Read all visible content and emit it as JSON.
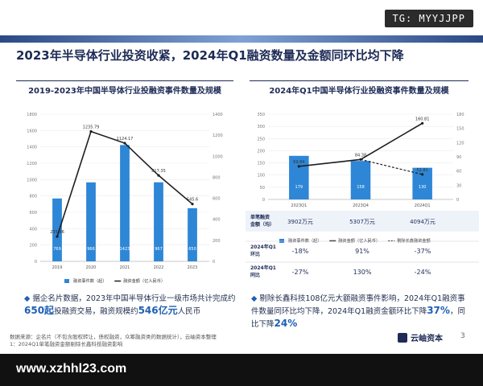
{
  "overlay": {
    "tg_badge": "TG: MYYJJPP",
    "website": "www.xzhhl23.com"
  },
  "headline": "2023年半导体行业投资收紧，2024年Q1融资数量及金额同环比均下降",
  "chart_data": [
    {
      "type": "bar",
      "title": "2019-2023年中国半导体行业投融资事件数量及规模",
      "categories": [
        "2019",
        "2020",
        "2021",
        "2022",
        "2023"
      ],
      "series": [
        {
          "name": "融资事件数（起）",
          "kind": "bar",
          "axis": "left",
          "values": [
            769,
            966,
            1423,
            967,
            650
          ]
        },
        {
          "name": "融资金额（亿人民币）",
          "kind": "line",
          "axis": "right",
          "values": [
            235.96,
            1235.79,
            1124.17,
            817.35,
            545.6
          ]
        }
      ],
      "y_left": {
        "ticks": [
          0,
          200,
          400,
          600,
          800,
          1000,
          1200,
          1400,
          1600,
          1800
        ]
      },
      "y_right": {
        "ticks": [
          0,
          200,
          400,
          600,
          800,
          1000,
          1200,
          1400
        ]
      },
      "legend": "bottom",
      "colors": {
        "bar": "#2e86d6",
        "line": "#1e1e1e"
      }
    },
    {
      "type": "bar",
      "title": "2024年Q1中国半导体行业投融资事件数量及规模",
      "categories": [
        "2023Q1",
        "2023Q4",
        "2024Q1"
      ],
      "series": [
        {
          "name": "融资事件数（起）",
          "kind": "bar",
          "axis": "left",
          "values": [
            179,
            158,
            130
          ]
        },
        {
          "name": "融资金额（亿人民币）",
          "kind": "line",
          "axis": "right",
          "values": [
            69.84,
            84.38,
            160.81
          ]
        },
        {
          "name": "剔除长鑫融资金额",
          "kind": "dashed",
          "axis": "right",
          "values": [
            null,
            84.38,
            52.81
          ]
        }
      ],
      "y_left": {
        "ticks": [
          0,
          50,
          100,
          150,
          200,
          250,
          300,
          350
        ]
      },
      "y_right": {
        "ticks": [
          0,
          30,
          60,
          90,
          120,
          150,
          180
        ]
      },
      "legend": "bottom",
      "colors": {
        "bar": "#2e86d6",
        "line": "#1e1e1e"
      }
    }
  ],
  "avg_row": {
    "label": "单笔融资\n金额（均）",
    "values": [
      "3902万元",
      "5307万元",
      "4094万元"
    ]
  },
  "compare_table": [
    {
      "label": "2024年Q1\n环比",
      "values": [
        "-18%",
        "91%",
        "-37%"
      ]
    },
    {
      "label": "2024年Q1\n同比",
      "values": [
        "-27%",
        "130%",
        "-24%"
      ]
    }
  ],
  "bullets": {
    "left": {
      "pre": "据企名片数据，2023年中国半导体行业一级市场共计完成约",
      "num1": "650起",
      "mid": "投融资交易，融资规模约",
      "num2": "546亿元",
      "post": "人民币"
    },
    "right": {
      "pre": "剔除长鑫科技108亿元大额融资事件影响，2024年Q1融资事件数量同环比均下降，2024年Q1融资金额环比下降",
      "num1": "37%",
      "mid": "，同比下降",
      "num2": "24%"
    }
  },
  "source": "数据来源：企名片（不包含股权转让，债权融资，众筹融资类的数据统计），云岫资本整理\n1：2024Q1单笔融资金额剔除长鑫科技融资影响",
  "brand": "云岫资本",
  "page_number": "3"
}
